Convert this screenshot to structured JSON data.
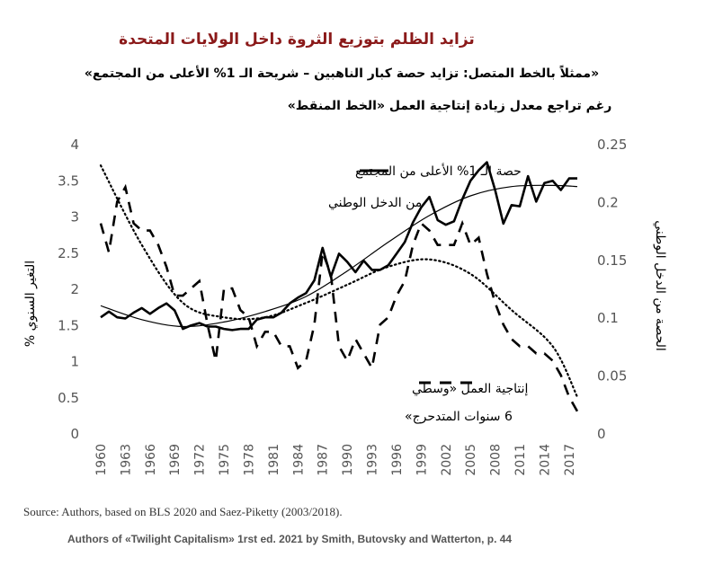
{
  "chart_data": {
    "type": "line",
    "title": "تزايد الظلم بتوزيع الثروة داخل الولايات المتحدة",
    "subtitle_line1": "«ممثلاً بالخط المتصل: تزايد حصة كبار الناهبين – شريحة الـ 1% الأعلى من المجتمع»",
    "subtitle_line2": "رغم تراجع معدل زيادة إنتاجية العمل «الخط المنقط»",
    "ylabel_left": "التغير السنوي %",
    "ylabel_right": "الحصة من الدخل الوطني",
    "x_ticks": [
      "1960",
      "1963",
      "1966",
      "1969",
      "1972",
      "1975",
      "1978",
      "1981",
      "1984",
      "1987",
      "1990",
      "1993",
      "1996",
      "1999",
      "2002",
      "2005",
      "2008",
      "2011",
      "2014",
      "2017"
    ],
    "y_left": {
      "min": 0,
      "max": 4,
      "ticks": [
        "0",
        "0.5",
        "1",
        "1.5",
        "2",
        "2.5",
        "3",
        "3.5",
        "4"
      ]
    },
    "y_right": {
      "min": 0,
      "max": 0.25,
      "ticks": [
        "0",
        "0.05",
        "0.1",
        "0.15",
        "0.2",
        "0.25"
      ]
    },
    "legend": {
      "solid_line1": "حصة الـ 1% الأعلى من المجتمع",
      "solid_line2": "من الدخل الوطني",
      "dashed_line1": "إنتاجية العمل «وسطي",
      "dashed_line2": "6 سنوات المتدحرج»"
    },
    "series": [
      {
        "name": "حصة الـ 1% الأعلى من المجتمع من الدخل الوطني",
        "axis": "right",
        "style": "solid",
        "x": [
          1960,
          1961,
          1962,
          1963,
          1964,
          1965,
          1966,
          1967,
          1968,
          1969,
          1970,
          1971,
          1972,
          1973,
          1974,
          1975,
          1976,
          1977,
          1978,
          1979,
          1980,
          1981,
          1982,
          1983,
          1984,
          1985,
          1986,
          1987,
          1988,
          1989,
          1990,
          1991,
          1992,
          1993,
          1994,
          1995,
          1996,
          1997,
          1998,
          1999,
          2000,
          2001,
          2002,
          2003,
          2004,
          2005,
          2006,
          2007,
          2008,
          2009,
          2010,
          2011,
          2012,
          2013,
          2014,
          2015,
          2016,
          2017,
          2018
        ],
        "values": [
          0.1,
          0.105,
          0.1,
          0.099,
          0.104,
          0.108,
          0.103,
          0.108,
          0.112,
          0.106,
          0.09,
          0.093,
          0.095,
          0.092,
          0.092,
          0.09,
          0.089,
          0.09,
          0.09,
          0.098,
          0.1,
          0.1,
          0.104,
          0.112,
          0.117,
          0.121,
          0.132,
          0.16,
          0.135,
          0.155,
          0.148,
          0.139,
          0.149,
          0.141,
          0.141,
          0.145,
          0.155,
          0.165,
          0.182,
          0.195,
          0.204,
          0.184,
          0.18,
          0.183,
          0.202,
          0.218,
          0.227,
          0.234,
          0.21,
          0.181,
          0.197,
          0.196,
          0.222,
          0.2,
          0.216,
          0.218,
          0.21,
          0.22,
          0.22
        ]
      },
      {
        "name": "إنتاجية العمل «وسطي 6 سنوات المتدحرج»",
        "axis": "left",
        "style": "dashed",
        "x": [
          1960,
          1961,
          1962,
          1963,
          1964,
          1965,
          1966,
          1967,
          1968,
          1969,
          1970,
          1971,
          1972,
          1973,
          1974,
          1975,
          1976,
          1977,
          1978,
          1979,
          1980,
          1981,
          1982,
          1983,
          1984,
          1985,
          1986,
          1987,
          1988,
          1989,
          1990,
          1991,
          1992,
          1993,
          1994,
          1995,
          1996,
          1997,
          1998,
          1999,
          2000,
          2001,
          2002,
          2003,
          2004,
          2005,
          2006,
          2007,
          2008,
          2009,
          2010,
          2011,
          2012,
          2013,
          2014,
          2015,
          2016,
          2017,
          2018
        ],
        "values": [
          2.9,
          2.5,
          3.2,
          3.4,
          2.9,
          2.8,
          2.8,
          2.6,
          2.3,
          1.9,
          1.9,
          2.0,
          2.1,
          1.5,
          1.0,
          2.0,
          2.0,
          1.7,
          1.6,
          1.2,
          1.4,
          1.4,
          1.2,
          1.2,
          0.9,
          1.0,
          1.5,
          2.5,
          2.2,
          1.2,
          1.0,
          1.3,
          1.1,
          0.9,
          1.5,
          1.6,
          1.9,
          2.1,
          2.6,
          2.9,
          2.8,
          2.6,
          2.6,
          2.6,
          2.9,
          2.6,
          2.7,
          2.2,
          1.8,
          1.5,
          1.3,
          1.2,
          1.2,
          1.1,
          1.1,
          1.0,
          0.8,
          0.5,
          0.3
        ]
      },
      {
        "name": "trend-share",
        "axis": "right",
        "style": "solid-thin",
        "x": [
          1960,
          1965,
          1970,
          1975,
          1980,
          1985,
          1990,
          1995,
          2000,
          2005,
          2010,
          2015,
          2018
        ],
        "values": [
          0.11,
          0.098,
          0.092,
          0.096,
          0.105,
          0.118,
          0.14,
          0.165,
          0.188,
          0.205,
          0.213,
          0.214,
          0.213
        ]
      },
      {
        "name": "trend-productivity",
        "axis": "left",
        "style": "dotted",
        "x": [
          1960,
          1965,
          1970,
          1975,
          1980,
          1985,
          1990,
          1995,
          2000,
          2005,
          2010,
          2015,
          2018
        ],
        "values": [
          3.7,
          2.6,
          1.8,
          1.6,
          1.6,
          1.8,
          2.05,
          2.3,
          2.4,
          2.2,
          1.7,
          1.2,
          0.5
        ]
      }
    ]
  },
  "footer": {
    "source": "Source: Authors, based on BLS 2020 and Saez-Piketty (2003/2018).",
    "credit": "Authors of «Twilight Capitalism» 1rst ed. 2021 by Smith, Butovsky and Watterton, p. 44"
  }
}
